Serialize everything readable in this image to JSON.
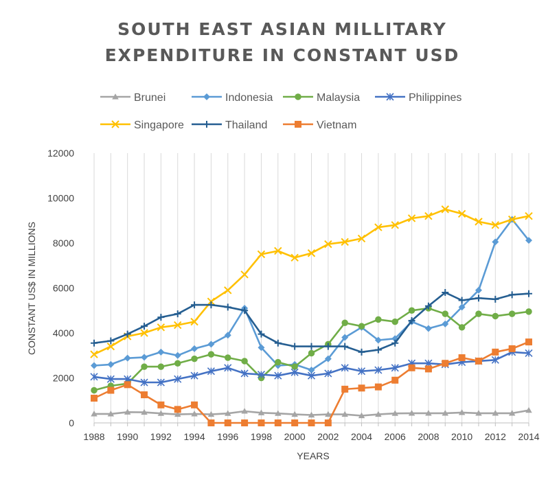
{
  "chart_data": {
    "type": "line",
    "title_lines": [
      "SOUTH EAST ASIAN MILLITARY",
      "EXPENDITURE IN CONSTANT USD"
    ],
    "xlabel": "YEARS",
    "ylabel": "CONSTANT US$ IN MILLIONS",
    "ylim": [
      0,
      12000
    ],
    "yticks": [
      0,
      2000,
      4000,
      6000,
      8000,
      10000,
      12000
    ],
    "yticklabels": [
      "0",
      "2000",
      "4000",
      "6000",
      "8000",
      "10000",
      "12000"
    ],
    "xticklabels": [
      "1988",
      "1990",
      "1992",
      "1994",
      "1996",
      "1998",
      "2000",
      "2002",
      "2004",
      "2006",
      "2008",
      "2010",
      "2012",
      "2014"
    ],
    "x": [
      1988,
      1989,
      1990,
      1991,
      1992,
      1993,
      1994,
      1995,
      1996,
      1997,
      1998,
      1999,
      2000,
      2001,
      2002,
      2003,
      2004,
      2005,
      2006,
      2007,
      2008,
      2009,
      2010,
      2011,
      2012,
      2013,
      2014
    ],
    "grid": "vertical",
    "legend_position": "top",
    "series": [
      {
        "name": "Brunei",
        "color": "#a5a5a5",
        "marker": "triangle",
        "values": [
          400,
          400,
          480,
          470,
          420,
          380,
          400,
          380,
          420,
          520,
          450,
          420,
          380,
          350,
          380,
          380,
          320,
          380,
          420,
          430,
          430,
          430,
          460,
          430,
          430,
          430,
          560
        ]
      },
      {
        "name": "Indonesia",
        "color": "#5b9bd5",
        "marker": "diamond",
        "values": [
          2550,
          2600,
          2880,
          2920,
          3150,
          3000,
          3300,
          3500,
          3900,
          5100,
          3350,
          2550,
          2600,
          2350,
          2850,
          3800,
          4250,
          3680,
          3750,
          4500,
          4200,
          4400,
          5150,
          5900,
          8050,
          9050,
          8120
        ]
      },
      {
        "name": "Malaysia",
        "color": "#70ad47",
        "marker": "circle",
        "values": [
          1450,
          1650,
          1750,
          2500,
          2500,
          2650,
          2850,
          3050,
          2900,
          2750,
          2000,
          2700,
          2500,
          3100,
          3500,
          4450,
          4300,
          4600,
          4500,
          5000,
          5100,
          4850,
          4250,
          4850,
          4750,
          4850,
          4950
        ]
      },
      {
        "name": "Philippines",
        "color": "#4472c4",
        "marker": "star",
        "values": [
          2050,
          1950,
          1950,
          1800,
          1800,
          1950,
          2100,
          2300,
          2450,
          2200,
          2150,
          2100,
          2250,
          2100,
          2200,
          2450,
          2300,
          2350,
          2450,
          2650,
          2650,
          2600,
          2700,
          2750,
          2800,
          3150,
          3100
        ]
      },
      {
        "name": "Singapore",
        "color": "#ffc000",
        "marker": "x",
        "values": [
          3050,
          3400,
          3850,
          4000,
          4250,
          4350,
          4500,
          5400,
          5900,
          6600,
          7500,
          7650,
          7350,
          7550,
          7950,
          8050,
          8200,
          8700,
          8800,
          9100,
          9200,
          9500,
          9300,
          8950,
          8800,
          9050,
          9200
        ]
      },
      {
        "name": "Thailand",
        "color": "#255e91",
        "marker": "plus",
        "values": [
          3550,
          3650,
          3950,
          4300,
          4700,
          4850,
          5250,
          5250,
          5150,
          5000,
          3950,
          3550,
          3400,
          3400,
          3400,
          3400,
          3150,
          3250,
          3550,
          4550,
          5200,
          5800,
          5450,
          5550,
          5500,
          5700,
          5750
        ]
      },
      {
        "name": "Vietnam",
        "color": "#ed7d31",
        "marker": "square",
        "values": [
          1100,
          1450,
          1700,
          1250,
          800,
          600,
          800,
          0,
          0,
          0,
          0,
          0,
          0,
          0,
          0,
          1500,
          1550,
          1600,
          1900,
          2450,
          2400,
          2650,
          2900,
          2750,
          3150,
          3300,
          3600
        ]
      }
    ]
  }
}
